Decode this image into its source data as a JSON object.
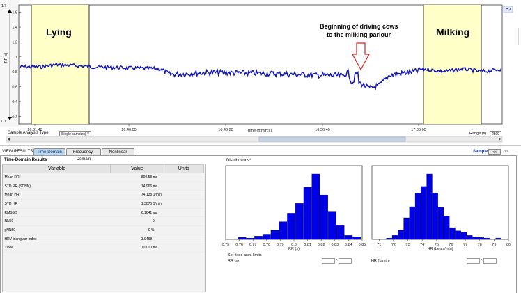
{
  "plot": {
    "y_axis_label": "RR (s)",
    "y_top_value": "1.7",
    "y_bottom_value": "0.1",
    "y_ticks": [
      "1.6",
      "1.4",
      "1.2",
      "1",
      "0.8",
      "0.6",
      "0.4",
      "0.2"
    ],
    "x_ticks": [
      "16:31:40",
      "16:40:00",
      "16:48:20",
      "16:56:40",
      "17:05:00"
    ],
    "x_axis_label": "Time (h:min:s)",
    "annotations": {
      "lying": "Lying",
      "milking": "Milking",
      "driving_line1": "Beginning of driving cows",
      "driving_line2": "to the milking parlour"
    },
    "colors": {
      "highlight": "#ffffc8",
      "signal": "#1418b4",
      "arrow": "#d42020"
    }
  },
  "controls": {
    "sample_analysis_label": "Sample Analysis Type",
    "sample_analysis_value": "Single samples",
    "range_label": "Range (s)",
    "range_value": "2500"
  },
  "view_results": {
    "label": "VIEW RESULTS",
    "tabs": [
      "Time-Domain",
      "Frequency-Domain",
      "Nonlinear"
    ],
    "active_tab": "Time-Domain",
    "sample_label": "Sample",
    "prev_button": "<<",
    "next_button": ">>"
  },
  "time_domain": {
    "title": "Time-Domain Results",
    "columns": [
      "Variable",
      "Value",
      "Units"
    ],
    "rows": [
      {
        "variable": "Mean RR*",
        "value": "809.58 ms"
      },
      {
        "variable": "STD RR (SDNN)",
        "value": "14.966 ms"
      },
      {
        "variable": "Mean HR*",
        "value": "74.138 1/min"
      },
      {
        "variable": "STD HR",
        "value": "1.3875 1/min"
      },
      {
        "variable": "RMSSD",
        "value": "6.1641 ms"
      },
      {
        "variable": "NN50",
        "value": "0"
      },
      {
        "variable": "pNN50",
        "value": "0 %"
      },
      {
        "variable": "HRV triangular index",
        "value": "3.9468"
      },
      {
        "variable": "TINN",
        "value": "70.000 ms"
      }
    ]
  },
  "distributions": {
    "title": "Distributions*",
    "set_fixed_axes": "Set fixed axes limits",
    "rr_limit_label": "RR (s)",
    "hr_limit_label": "HR (1/min)"
  },
  "chart_data": [
    {
      "type": "bar",
      "xlabel": "RR (s)",
      "x_ticks": [
        "0.75",
        "0.76",
        "0.77",
        "0.78",
        "0.79",
        "0.8",
        "0.81",
        "0.82",
        "0.83",
        "0.84",
        "0.85"
      ],
      "bin_centers": [
        0.762,
        0.768,
        0.774,
        0.78,
        0.786,
        0.792,
        0.798,
        0.804,
        0.81,
        0.816,
        0.822,
        0.828,
        0.834,
        0.84,
        0.846
      ],
      "values": [
        3,
        2,
        5,
        8,
        14,
        27,
        40,
        55,
        80,
        100,
        68,
        43,
        21,
        6,
        4
      ],
      "xlim": [
        0.75,
        0.85
      ],
      "color": "#0000e6"
    },
    {
      "type": "bar",
      "xlabel": "HR (beats/min)",
      "x_ticks": [
        "71",
        "72",
        "73",
        "74",
        "75",
        "76",
        "77",
        "78",
        "79",
        "80"
      ],
      "bin_centers": [
        71.7,
        72.1,
        72.5,
        72.9,
        73.3,
        73.7,
        74.1,
        74.5,
        74.9,
        75.3,
        75.7,
        76.1,
        76.5,
        76.9,
        77.3,
        77.7,
        78.1,
        78.5,
        79.3
      ],
      "values": [
        2,
        6,
        14,
        33,
        50,
        71,
        81,
        100,
        71,
        49,
        36,
        18,
        13,
        11,
        6,
        4,
        3,
        2,
        2
      ],
      "xlim": [
        70.5,
        80
      ],
      "color": "#0000e6"
    }
  ]
}
